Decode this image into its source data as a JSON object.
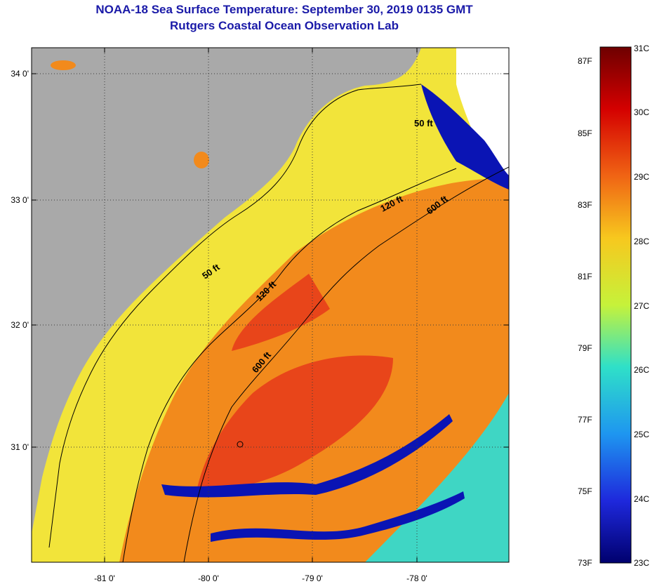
{
  "title": {
    "line1": "NOAA-18 Sea Surface Temperature:  September 30, 2019 0135 GMT",
    "line2": "Rutgers Coastal Ocean Observation Lab"
  },
  "map": {
    "lat_ticks": [
      "34 0'",
      "33 0'",
      "32 0'",
      "31 0'"
    ],
    "lon_ticks": [
      "-81 0'",
      "-80 0'",
      "-79 0'",
      "-78 0'"
    ],
    "contours": [
      "50 ft",
      "50 ft",
      "120 ft",
      "120 ft",
      "600 ft",
      "600 ft"
    ],
    "colors": {
      "land": "#a9a9a9",
      "cloud": "#ffffff",
      "coastal": "#f2e43a",
      "warm": "#f28a1c",
      "warmest": "#e8451a",
      "cool": "#3fd6c4",
      "cold": "#0a14b4"
    }
  },
  "colorbar": {
    "celsius": [
      "31C",
      "30C",
      "29C",
      "28C",
      "27C",
      "26C",
      "25C",
      "24C",
      "23C"
    ],
    "fahrenheit": [
      "87F",
      "85F",
      "83F",
      "81F",
      "79F",
      "77F",
      "75F",
      "73F"
    ]
  }
}
